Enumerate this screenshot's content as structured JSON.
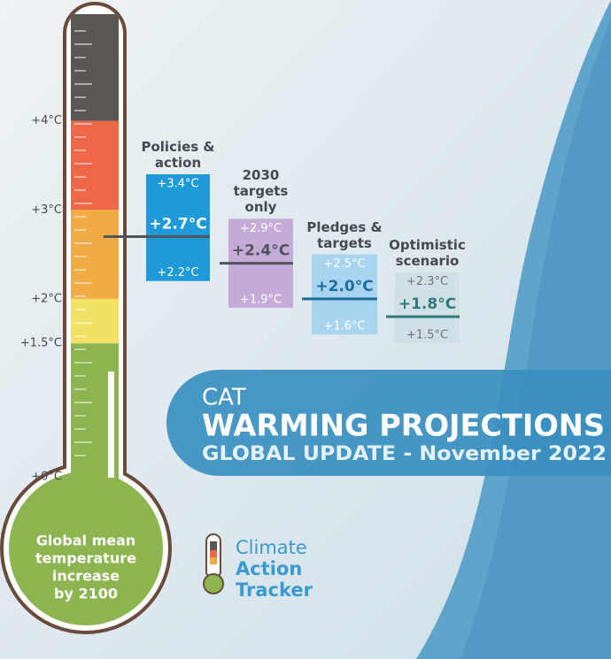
{
  "chart_data": {
    "type": "range",
    "ylim": [
      0,
      5.2
    ],
    "yticks": [
      {
        "value": 0,
        "label": "+0°C"
      },
      {
        "value": 1.5,
        "label": "+1.5°C"
      },
      {
        "value": 2,
        "label": "+2°C"
      },
      {
        "value": 3,
        "label": "+3°C"
      },
      {
        "value": 4,
        "label": "+4°C"
      }
    ],
    "band_colors": [
      "#8cb54f",
      "#f3e163",
      "#f1ab45",
      "#ee6847",
      "#5b5553"
    ],
    "series": [
      {
        "name": "Policies & action",
        "color": "#1f9ad8",
        "line_color": "#50555a",
        "label_color": "#ffffff",
        "mid_color": "#ffffff",
        "values": [
          2.2,
          2.7,
          3.4
        ],
        "value_labels": [
          "+2.2°C",
          "+2.7°C",
          "+3.4°C"
        ]
      },
      {
        "name": "2030 targets only",
        "color": "#c6abd9",
        "line_color": "#50555a",
        "label_color": "#ffffff",
        "mid_color": "#50555a",
        "values": [
          1.9,
          2.4,
          2.9
        ],
        "value_labels": [
          "+1.9°C",
          "+2.4°C",
          "+2.9°C"
        ]
      },
      {
        "name": "Pledges & targets",
        "color": "#a8d4ef",
        "line_color": "#1a6f9c",
        "label_color": "#ffffff",
        "mid_color": "#1a6f9c",
        "values": [
          1.6,
          2.0,
          2.5
        ],
        "value_labels": [
          "+1.6°C",
          "+2.0°C",
          "+2.5°C"
        ]
      },
      {
        "name": "Optimistic scenario",
        "color": "#d1e0e6",
        "line_color": "#2e7c79",
        "label_color": "#6b7378",
        "mid_color": "#2e7c79",
        "values": [
          1.5,
          1.8,
          2.3
        ],
        "value_labels": [
          "+1.5°C",
          "+1.8°C",
          "+2.3°C"
        ]
      }
    ]
  },
  "bulb_text": [
    "Global mean",
    "temperature",
    "increase",
    "by 2100"
  ],
  "banner": {
    "kicker": "CAT",
    "title": "WARMING PROJECTIONS",
    "subtitle": "GLOBAL UPDATE - November 2022"
  },
  "logo": [
    "Climate",
    "Action",
    "Tracker"
  ]
}
